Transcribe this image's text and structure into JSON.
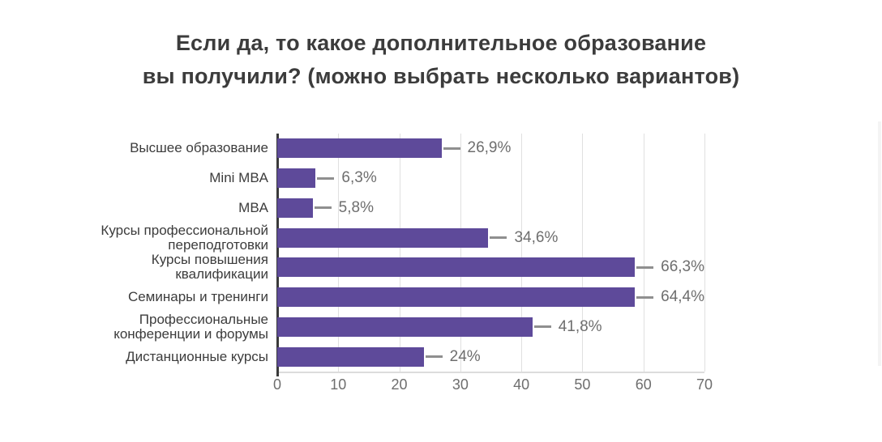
{
  "page": {
    "title_line1": "Если да, то какое дополнительное образование",
    "title_line2": "вы получили? (можно выбрать несколько вариантов)"
  },
  "chart_data": {
    "type": "bar",
    "orientation": "horizontal",
    "title": "Если да, то какое дополнительное образование вы получили? (можно выбрать несколько вариантов)",
    "categories": [
      "Высшее образование",
      "Mini MBA",
      "MBA",
      "Курсы профессиональной переподготовки",
      "Курсы повышения квалификации",
      "Семинары и тренинги",
      "Профессиональные конференции и форумы",
      "Дистанционные курсы"
    ],
    "category_lines": [
      [
        "Высшее образование"
      ],
      [
        "Mini MBA"
      ],
      [
        "MBA"
      ],
      [
        "Курсы профессиональной",
        "переподготовки"
      ],
      [
        "Курсы повышения",
        "квалификации"
      ],
      [
        "Семинары и тренинги"
      ],
      [
        "Профессиональные",
        "конференции и форумы"
      ],
      [
        "Дистанционные курсы"
      ]
    ],
    "values": [
      26.9,
      6.3,
      5.8,
      34.6,
      66.3,
      64.4,
      41.8,
      24
    ],
    "value_labels": [
      "26,9%",
      "6,3%",
      "5,8%",
      "34,6%",
      "66,3%",
      "64,4%",
      "41,8%",
      "24%"
    ],
    "x_ticks": [
      0,
      10,
      20,
      30,
      40,
      50,
      60,
      70
    ],
    "xlim": [
      0,
      70
    ],
    "xlabel": "",
    "ylabel": "",
    "grid": true,
    "legend": "none",
    "colors": {
      "bar": "#5e4a9a",
      "title_text": "#3c3c3c",
      "category_text": "#3c3c3c",
      "value_text": "#6e6e6e",
      "tick_text": "#6e6e6e",
      "leader_line": "#8f8f8f",
      "gridline": "#e0e0e0",
      "zero_axis": "#3a3a3a",
      "plot_bottom_border": "#dcdcdc"
    }
  }
}
